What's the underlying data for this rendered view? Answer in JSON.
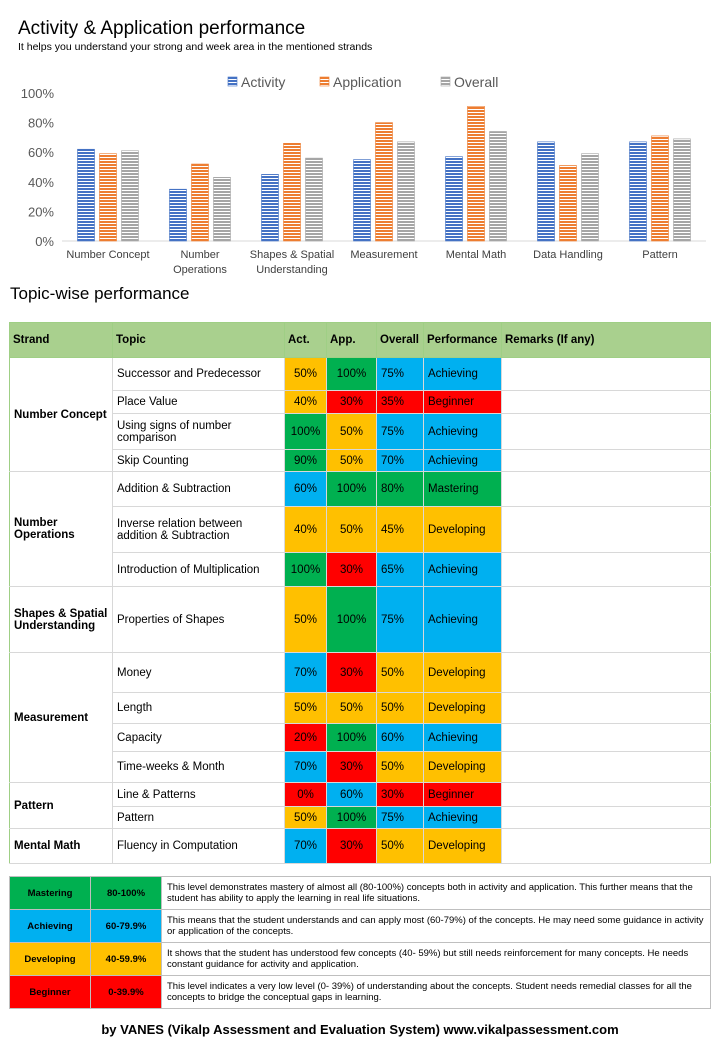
{
  "header": {
    "title": "Activity & Application performance",
    "subtitle": "It helps you understand your strong and week area in the mentioned strands"
  },
  "colors": {
    "activity": "#4472c4",
    "application": "#ed7d31",
    "overall": "#a5a5a5",
    "mastering": "#00b050",
    "achieving": "#00b0f0",
    "developing": "#ffc000",
    "beginner": "#ff0000",
    "header_green": "#a9d08e"
  },
  "chart_data": {
    "type": "bar",
    "title": "",
    "categories": [
      [
        "Number Concept"
      ],
      [
        "Number",
        "Operations"
      ],
      [
        "Shapes & Spatial",
        "Understanding"
      ],
      [
        "Measurement"
      ],
      [
        "Mental Math"
      ],
      [
        "Data Handling"
      ],
      [
        "Pattern"
      ]
    ],
    "series": [
      {
        "name": "Activity",
        "values": [
          62,
          35,
          45,
          55,
          57,
          67,
          67
        ]
      },
      {
        "name": "Application",
        "values": [
          59,
          52,
          66,
          80,
          91,
          51,
          71
        ]
      },
      {
        "name": "Overall",
        "values": [
          61,
          43,
          56,
          67,
          74,
          59,
          69
        ]
      }
    ],
    "ylim": [
      0,
      100
    ],
    "yticks": [
      "0%",
      "20%",
      "40%",
      "60%",
      "80%",
      "100%"
    ],
    "legend_position": "top-center",
    "grid": false
  },
  "topics": {
    "section_title": "Topic-wise performance",
    "headers": {
      "strand": "Strand",
      "topic": "Topic",
      "act": "Act.",
      "app": "App.",
      "overall": "Overall",
      "performance": "Performance",
      "remarks": "Remarks (If any)"
    },
    "rows": [
      {
        "strand": "Number Concept",
        "rowspan": 4,
        "topic": "Successor and Predecessor",
        "act": "50%",
        "act_c": "yellow",
        "app": "100%",
        "app_c": "green",
        "overall": "75%",
        "perf": "Achieving",
        "perf_c": "blue"
      },
      {
        "topic": "Place Value",
        "act": "40%",
        "act_c": "yellow",
        "app": "30%",
        "app_c": "red",
        "overall": "35%",
        "perf": "Beginner",
        "perf_c": "red"
      },
      {
        "topic": "Using signs of number comparison",
        "act": "100%",
        "act_c": "green",
        "app": "50%",
        "app_c": "yellow",
        "overall": "75%",
        "perf": "Achieving",
        "perf_c": "blue"
      },
      {
        "topic": "Skip Counting",
        "act": "90%",
        "act_c": "green",
        "app": "50%",
        "app_c": "yellow",
        "overall": "70%",
        "perf": "Achieving",
        "perf_c": "blue"
      },
      {
        "strand": "Number Operations",
        "rowspan": 3,
        "topic": "Addition & Subtraction",
        "act": "60%",
        "act_c": "blue",
        "app": "100%",
        "app_c": "green",
        "overall": "80%",
        "perf": "Mastering",
        "perf_c": "green"
      },
      {
        "topic": "Inverse relation between addition & Subtraction",
        "act": "40%",
        "act_c": "yellow",
        "app": "50%",
        "app_c": "yellow",
        "overall": "45%",
        "perf": "Developing",
        "perf_c": "yellow"
      },
      {
        "topic": "Introduction of Multiplication",
        "act": "100%",
        "act_c": "green",
        "app": "30%",
        "app_c": "red",
        "overall": "65%",
        "perf": "Achieving",
        "perf_c": "blue"
      },
      {
        "strand": "Shapes & Spatial Understanding",
        "rowspan": 1,
        "topic": "Properties of Shapes",
        "act": "50%",
        "act_c": "yellow",
        "app": "100%",
        "app_c": "green",
        "overall": "75%",
        "perf": "Achieving",
        "perf_c": "blue"
      },
      {
        "strand": "Measurement",
        "rowspan": 4,
        "topic": "Money",
        "act": "70%",
        "act_c": "blue",
        "app": "30%",
        "app_c": "red",
        "overall": "50%",
        "perf": "Developing",
        "perf_c": "yellow"
      },
      {
        "topic": "Length",
        "act": "50%",
        "act_c": "yellow",
        "app": "50%",
        "app_c": "yellow",
        "overall": "50%",
        "perf": "Developing",
        "perf_c": "yellow"
      },
      {
        "topic": "Capacity",
        "act": "20%",
        "act_c": "red",
        "app": "100%",
        "app_c": "green",
        "overall": "60%",
        "perf": "Achieving",
        "perf_c": "blue"
      },
      {
        "topic": "Time-weeks  & Month",
        "act": "70%",
        "act_c": "blue",
        "app": "30%",
        "app_c": "red",
        "overall": "50%",
        "perf": "Developing",
        "perf_c": "yellow"
      },
      {
        "strand": "Pattern",
        "rowspan": 2,
        "topic": "Line & Patterns",
        "act": "0%",
        "act_c": "red",
        "app": "60%",
        "app_c": "blue",
        "overall": "30%",
        "perf": "Beginner",
        "perf_c": "red"
      },
      {
        "topic": "Pattern",
        "act": "50%",
        "act_c": "yellow",
        "app": "100%",
        "app_c": "green",
        "overall": "75%",
        "perf": "Achieving",
        "perf_c": "blue"
      },
      {
        "strand": "Mental Math",
        "rowspan": 1,
        "topic": "Fluency in Computation",
        "act": "70%",
        "act_c": "blue",
        "app": "30%",
        "app_c": "red",
        "overall": "50%",
        "perf": "Developing",
        "perf_c": "yellow"
      }
    ]
  },
  "legend_levels": [
    {
      "level": "Mastering",
      "range": "80-100%",
      "color": "green",
      "desc": "This level demonstrates mastery of almost all (80-100%) concepts both in activity and application. This further means that the student has ability to apply the learning in real life situations."
    },
    {
      "level": "Achieving",
      "range": "60-79.9%",
      "color": "blue",
      "desc": "This means that the student understands and can apply most (60-79%) of the concepts. He may need some guidance in activity or application of the concepts."
    },
    {
      "level": "Developing",
      "range": "40-59.9%",
      "color": "yellow",
      "desc": "It shows that the student has understood few concepts (40- 59%) but still needs reinforcement for many concepts. He needs constant guidance for activity and application."
    },
    {
      "level": "Beginner",
      "range": "0-39.9%",
      "color": "red",
      "desc": "This level indicates a very low level (0- 39%) of understanding about the concepts. Student needs remedial classes for all the concepts to bridge the conceptual gaps in learning."
    }
  ],
  "footer": "by VANES (Vikalp Assessment and Evaluation System) www.vikalpassessment.com"
}
